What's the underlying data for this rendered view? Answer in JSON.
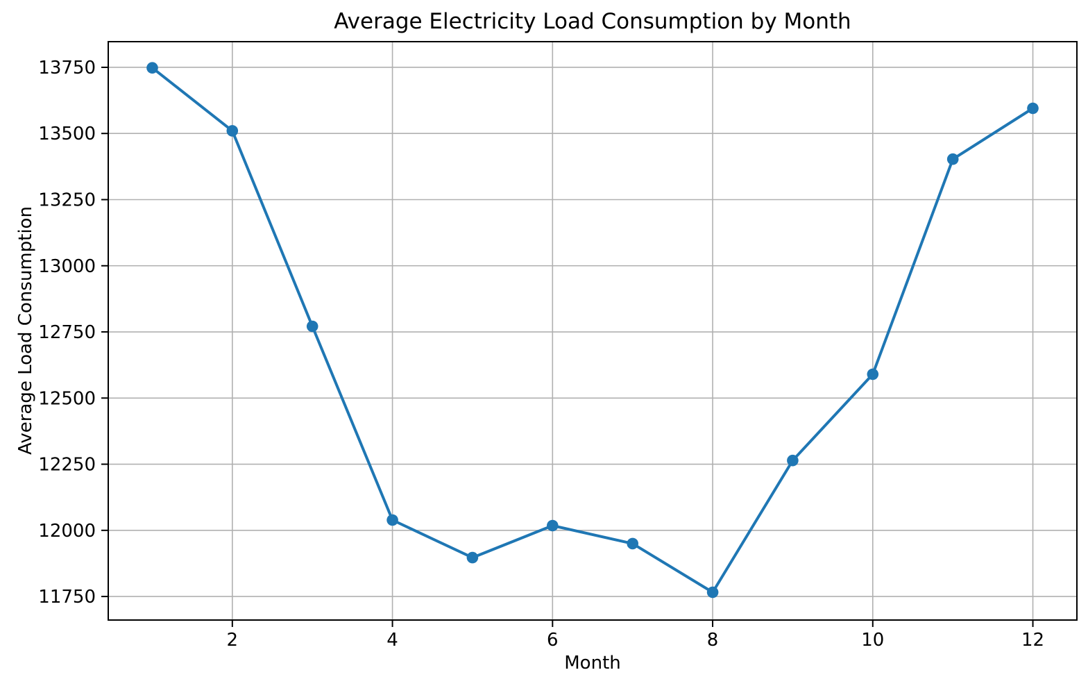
{
  "chart_data": {
    "type": "line",
    "title": "Average Electricity Load Consumption by Month",
    "xlabel": "Month",
    "ylabel": "Average Load Consumption",
    "x": [
      1,
      2,
      3,
      4,
      5,
      6,
      7,
      8,
      9,
      10,
      11,
      12
    ],
    "series": [
      {
        "name": "Average Load Consumption",
        "values": [
          13748,
          13510,
          12771,
          12039,
          11897,
          12018,
          11950,
          11766,
          12264,
          12590,
          13403,
          13595
        ]
      }
    ],
    "xticks": [
      2,
      4,
      6,
      8,
      10,
      12
    ],
    "yticks": [
      11750,
      12000,
      12250,
      12500,
      12750,
      13000,
      13250,
      13500,
      13750
    ],
    "xlim": [
      0.45,
      12.55
    ],
    "ylim": [
      11661,
      13847
    ],
    "grid": true,
    "legend_position": "none",
    "marker": "circle",
    "colors": {
      "line": "#1f77b4",
      "marker": "#1f77b4",
      "grid": "#b0b0b0",
      "spine": "#000000",
      "background": "#ffffff",
      "text": "#000000"
    }
  }
}
